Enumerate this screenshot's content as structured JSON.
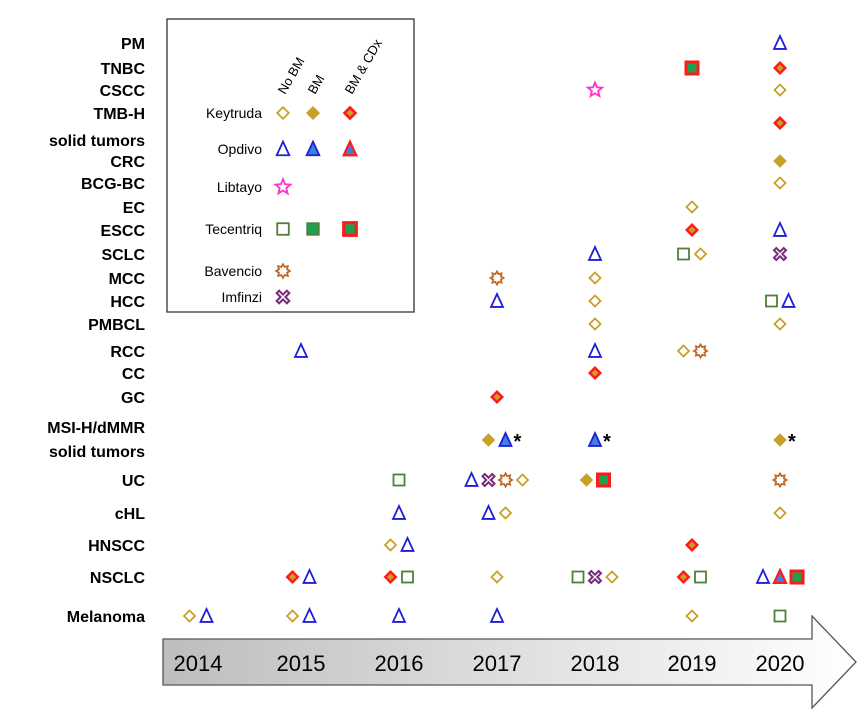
{
  "chart_data": {
    "type": "timeline",
    "title": "",
    "years": [
      "2014",
      "2015",
      "2016",
      "2017",
      "2018",
      "2019",
      "2020"
    ],
    "categories": [
      {
        "key": "PM",
        "label": [
          "PM"
        ]
      },
      {
        "key": "TNBC",
        "label": [
          "TNBC"
        ]
      },
      {
        "key": "CSCC",
        "label": [
          "CSCC"
        ]
      },
      {
        "key": "TMBH",
        "label": [
          "TMB-H",
          "solid tumors"
        ]
      },
      {
        "key": "CRC",
        "label": [
          "CRC"
        ]
      },
      {
        "key": "BCGBC",
        "label": [
          "BCG-BC"
        ]
      },
      {
        "key": "EC",
        "label": [
          "EC"
        ]
      },
      {
        "key": "ESCC",
        "label": [
          "ESCC"
        ]
      },
      {
        "key": "SCLC",
        "label": [
          "SCLC"
        ]
      },
      {
        "key": "MCC",
        "label": [
          "MCC"
        ]
      },
      {
        "key": "HCC",
        "label": [
          "HCC"
        ]
      },
      {
        "key": "PMBCL",
        "label": [
          "PMBCL"
        ]
      },
      {
        "key": "RCC",
        "label": [
          "RCC"
        ]
      },
      {
        "key": "CC",
        "label": [
          "CC"
        ]
      },
      {
        "key": "GC",
        "label": [
          "GC"
        ]
      },
      {
        "key": "MSI",
        "label": [
          "MSI-H/dMMR",
          "solid tumors"
        ]
      },
      {
        "key": "UC",
        "label": [
          "UC"
        ]
      },
      {
        "key": "cHL",
        "label": [
          "cHL"
        ]
      },
      {
        "key": "HNSCC",
        "label": [
          "HNSCC"
        ]
      },
      {
        "key": "NSCLC",
        "label": [
          "NSCLC"
        ]
      },
      {
        "key": "Melanoma",
        "label": [
          "Melanoma"
        ]
      }
    ],
    "legend": {
      "column_headers": [
        "No BM",
        "BM",
        "BM & CDx"
      ],
      "drugs": [
        {
          "name": "Keytruda",
          "shape": "diamond",
          "variants": [
            "nobm",
            "bm",
            "cdx"
          ]
        },
        {
          "name": "Opdivo",
          "shape": "triangle",
          "variants": [
            "nobm",
            "bm",
            "cdx"
          ]
        },
        {
          "name": "Libtayo",
          "shape": "star",
          "variants": [
            "nobm"
          ]
        },
        {
          "name": "Tecentriq",
          "shape": "square",
          "variants": [
            "nobm",
            "bm",
            "cdx"
          ]
        },
        {
          "name": "Bavencio",
          "shape": "gear",
          "variants": [
            "nobm"
          ]
        },
        {
          "name": "Imfinzi",
          "shape": "cross",
          "variants": [
            "nobm"
          ]
        }
      ]
    },
    "approvals": [
      {
        "category": "PM",
        "year": "2020",
        "markers": [
          {
            "drug": "Opdivo",
            "variant": "nobm"
          }
        ]
      },
      {
        "category": "TNBC",
        "year": "2019",
        "markers": [
          {
            "drug": "Tecentriq",
            "variant": "cdx"
          }
        ]
      },
      {
        "category": "TNBC",
        "year": "2020",
        "markers": [
          {
            "drug": "Keytruda",
            "variant": "cdx"
          }
        ]
      },
      {
        "category": "CSCC",
        "year": "2018",
        "markers": [
          {
            "drug": "Libtayo",
            "variant": "nobm"
          }
        ]
      },
      {
        "category": "CSCC",
        "year": "2020",
        "markers": [
          {
            "drug": "Keytruda",
            "variant": "nobm"
          }
        ]
      },
      {
        "category": "TMBH",
        "year": "2020",
        "markers": [
          {
            "drug": "Keytruda",
            "variant": "cdx"
          }
        ]
      },
      {
        "category": "CRC",
        "year": "2020",
        "markers": [
          {
            "drug": "Keytruda",
            "variant": "bm"
          }
        ]
      },
      {
        "category": "BCGBC",
        "year": "2020",
        "markers": [
          {
            "drug": "Keytruda",
            "variant": "nobm"
          }
        ]
      },
      {
        "category": "EC",
        "year": "2019",
        "markers": [
          {
            "drug": "Keytruda",
            "variant": "nobm"
          }
        ]
      },
      {
        "category": "ESCC",
        "year": "2019",
        "markers": [
          {
            "drug": "Keytruda",
            "variant": "cdx"
          }
        ]
      },
      {
        "category": "ESCC",
        "year": "2020",
        "markers": [
          {
            "drug": "Opdivo",
            "variant": "nobm"
          }
        ]
      },
      {
        "category": "SCLC",
        "year": "2018",
        "markers": [
          {
            "drug": "Opdivo",
            "variant": "nobm"
          }
        ]
      },
      {
        "category": "SCLC",
        "year": "2019",
        "markers": [
          {
            "drug": "Tecentriq",
            "variant": "nobm"
          },
          {
            "drug": "Keytruda",
            "variant": "nobm"
          }
        ]
      },
      {
        "category": "SCLC",
        "year": "2020",
        "markers": [
          {
            "drug": "Imfinzi",
            "variant": "nobm"
          }
        ]
      },
      {
        "category": "MCC",
        "year": "2017",
        "markers": [
          {
            "drug": "Bavencio",
            "variant": "nobm"
          }
        ]
      },
      {
        "category": "MCC",
        "year": "2018",
        "markers": [
          {
            "drug": "Keytruda",
            "variant": "nobm"
          }
        ]
      },
      {
        "category": "HCC",
        "year": "2017",
        "markers": [
          {
            "drug": "Opdivo",
            "variant": "nobm"
          }
        ]
      },
      {
        "category": "HCC",
        "year": "2018",
        "markers": [
          {
            "drug": "Keytruda",
            "variant": "nobm"
          }
        ]
      },
      {
        "category": "HCC",
        "year": "2020",
        "markers": [
          {
            "drug": "Tecentriq",
            "variant": "nobm"
          },
          {
            "drug": "Opdivo",
            "variant": "nobm"
          }
        ]
      },
      {
        "category": "PMBCL",
        "year": "2018",
        "markers": [
          {
            "drug": "Keytruda",
            "variant": "nobm"
          }
        ]
      },
      {
        "category": "PMBCL",
        "year": "2020",
        "markers": [
          {
            "drug": "Keytruda",
            "variant": "nobm"
          }
        ]
      },
      {
        "category": "RCC",
        "year": "2015",
        "markers": [
          {
            "drug": "Opdivo",
            "variant": "nobm"
          }
        ]
      },
      {
        "category": "RCC",
        "year": "2018",
        "markers": [
          {
            "drug": "Opdivo",
            "variant": "nobm"
          }
        ]
      },
      {
        "category": "RCC",
        "year": "2019",
        "markers": [
          {
            "drug": "Keytruda",
            "variant": "nobm"
          },
          {
            "drug": "Bavencio",
            "variant": "nobm"
          }
        ]
      },
      {
        "category": "CC",
        "year": "2018",
        "markers": [
          {
            "drug": "Keytruda",
            "variant": "cdx"
          }
        ]
      },
      {
        "category": "GC",
        "year": "2017",
        "markers": [
          {
            "drug": "Keytruda",
            "variant": "cdx"
          }
        ]
      },
      {
        "category": "MSI",
        "year": "2017",
        "markers": [
          {
            "drug": "Keytruda",
            "variant": "bm"
          },
          {
            "drug": "Opdivo",
            "variant": "bm"
          }
        ],
        "note": "*"
      },
      {
        "category": "MSI",
        "year": "2018",
        "markers": [
          {
            "drug": "Opdivo",
            "variant": "bm"
          }
        ],
        "note": "*"
      },
      {
        "category": "MSI",
        "year": "2020",
        "markers": [
          {
            "drug": "Keytruda",
            "variant": "bm"
          }
        ],
        "note": "*"
      },
      {
        "category": "UC",
        "year": "2016",
        "markers": [
          {
            "drug": "Tecentriq",
            "variant": "nobm"
          }
        ]
      },
      {
        "category": "UC",
        "year": "2017",
        "markers": [
          {
            "drug": "Opdivo",
            "variant": "nobm"
          },
          {
            "drug": "Imfinzi",
            "variant": "nobm"
          },
          {
            "drug": "Bavencio",
            "variant": "nobm"
          },
          {
            "drug": "Keytruda",
            "variant": "nobm"
          }
        ]
      },
      {
        "category": "UC",
        "year": "2018",
        "markers": [
          {
            "drug": "Keytruda",
            "variant": "bm"
          },
          {
            "drug": "Tecentriq",
            "variant": "cdx"
          }
        ]
      },
      {
        "category": "UC",
        "year": "2020",
        "markers": [
          {
            "drug": "Bavencio",
            "variant": "nobm"
          }
        ]
      },
      {
        "category": "cHL",
        "year": "2016",
        "markers": [
          {
            "drug": "Opdivo",
            "variant": "nobm"
          }
        ]
      },
      {
        "category": "cHL",
        "year": "2017",
        "markers": [
          {
            "drug": "Opdivo",
            "variant": "nobm"
          },
          {
            "drug": "Keytruda",
            "variant": "nobm"
          }
        ]
      },
      {
        "category": "cHL",
        "year": "2020",
        "markers": [
          {
            "drug": "Keytruda",
            "variant": "nobm"
          }
        ]
      },
      {
        "category": "HNSCC",
        "year": "2016",
        "markers": [
          {
            "drug": "Keytruda",
            "variant": "nobm"
          },
          {
            "drug": "Opdivo",
            "variant": "nobm"
          }
        ]
      },
      {
        "category": "HNSCC",
        "year": "2019",
        "markers": [
          {
            "drug": "Keytruda",
            "variant": "cdx"
          }
        ]
      },
      {
        "category": "NSCLC",
        "year": "2015",
        "markers": [
          {
            "drug": "Keytruda",
            "variant": "cdx"
          },
          {
            "drug": "Opdivo",
            "variant": "nobm"
          }
        ]
      },
      {
        "category": "NSCLC",
        "year": "2016",
        "markers": [
          {
            "drug": "Keytruda",
            "variant": "cdx"
          },
          {
            "drug": "Tecentriq",
            "variant": "nobm"
          }
        ]
      },
      {
        "category": "NSCLC",
        "year": "2017",
        "markers": [
          {
            "drug": "Keytruda",
            "variant": "nobm"
          }
        ]
      },
      {
        "category": "NSCLC",
        "year": "2018",
        "markers": [
          {
            "drug": "Tecentriq",
            "variant": "nobm"
          },
          {
            "drug": "Imfinzi",
            "variant": "nobm"
          },
          {
            "drug": "Keytruda",
            "variant": "nobm"
          }
        ]
      },
      {
        "category": "NSCLC",
        "year": "2019",
        "markers": [
          {
            "drug": "Keytruda",
            "variant": "cdx"
          },
          {
            "drug": "Tecentriq",
            "variant": "nobm"
          }
        ]
      },
      {
        "category": "NSCLC",
        "year": "2020",
        "markers": [
          {
            "drug": "Opdivo",
            "variant": "nobm"
          },
          {
            "drug": "Opdivo",
            "variant": "cdx"
          },
          {
            "drug": "Tecentriq",
            "variant": "cdx"
          }
        ]
      },
      {
        "category": "Melanoma",
        "year": "2014",
        "markers": [
          {
            "drug": "Keytruda",
            "variant": "nobm"
          },
          {
            "drug": "Opdivo",
            "variant": "nobm"
          }
        ]
      },
      {
        "category": "Melanoma",
        "year": "2015",
        "markers": [
          {
            "drug": "Keytruda",
            "variant": "nobm"
          },
          {
            "drug": "Opdivo",
            "variant": "nobm"
          }
        ]
      },
      {
        "category": "Melanoma",
        "year": "2016",
        "markers": [
          {
            "drug": "Opdivo",
            "variant": "nobm"
          }
        ]
      },
      {
        "category": "Melanoma",
        "year": "2017",
        "markers": [
          {
            "drug": "Opdivo",
            "variant": "nobm"
          }
        ]
      },
      {
        "category": "Melanoma",
        "year": "2019",
        "markers": [
          {
            "drug": "Keytruda",
            "variant": "nobm"
          }
        ]
      },
      {
        "category": "Melanoma",
        "year": "2020",
        "markers": [
          {
            "drug": "Tecentriq",
            "variant": "nobm"
          }
        ]
      }
    ],
    "colors": {
      "keytruda": "#c8a028",
      "opdivo": "#1f1fd6",
      "opdivo_fill": "#3f7fe0",
      "libtayo": "#ff33cc",
      "tecentriq": "#4f7f3a",
      "tecentriq_fill": "#1ea050",
      "bavencio": "#c0692a",
      "imfinzi": "#7a2a7a",
      "cdx_fill": "#ff1a1a"
    }
  }
}
